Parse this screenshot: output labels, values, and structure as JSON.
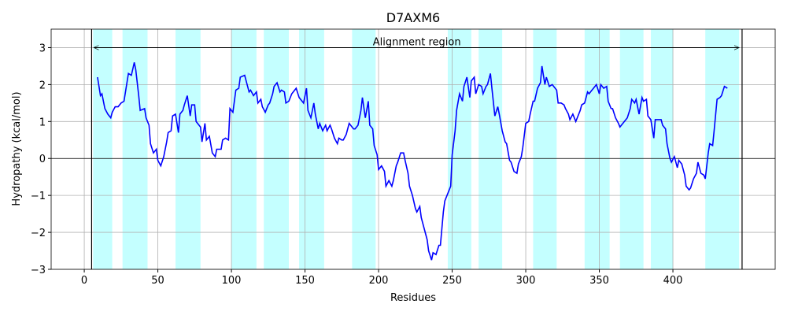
{
  "chart_data": {
    "type": "line",
    "title": "D7AXM6",
    "xlabel": "Residues",
    "ylabel": "Hydropathy (kcal/mol)",
    "color": "#0000ff",
    "grid": true,
    "xlim": [
      -22.5,
      469.5
    ],
    "ylim": [
      -3,
      3.5
    ],
    "xticks": [
      0,
      50,
      100,
      150,
      200,
      250,
      300,
      350,
      400
    ],
    "yticks": [
      -3,
      -2,
      -1,
      0,
      1,
      2,
      3
    ],
    "hline": 0,
    "vlines": [
      5,
      447
    ],
    "span_color": "#c4ffff",
    "spans": [
      [
        6,
        19
      ],
      [
        26,
        43
      ],
      [
        62,
        79
      ],
      [
        100,
        117
      ],
      [
        122,
        139
      ],
      [
        146,
        163
      ],
      [
        182,
        198
      ],
      [
        247,
        263
      ],
      [
        268,
        284
      ],
      [
        305,
        321
      ],
      [
        340,
        357
      ],
      [
        364,
        380
      ],
      [
        385,
        400
      ],
      [
        422,
        445
      ]
    ],
    "annotation": {
      "text": "Alignment region",
      "x": 226,
      "y": 3.15,
      "arrow_from": 6.5,
      "arrow_to": 445,
      "arrow_y": 3
    },
    "x": [
      9,
      11,
      12,
      14,
      16,
      18,
      19,
      21,
      23,
      25,
      27,
      28,
      30,
      32,
      34,
      35,
      37,
      38,
      41,
      42,
      44,
      45,
      47,
      49,
      50,
      52,
      54,
      56,
      57,
      59,
      60,
      62,
      64,
      65,
      67,
      68,
      70,
      72,
      73,
      75,
      76,
      79,
      80,
      82,
      83,
      85,
      87,
      89,
      90,
      93,
      94,
      96,
      98,
      99,
      101,
      103,
      105,
      106,
      109,
      110,
      112,
      113,
      115,
      117,
      118,
      120,
      121,
      123,
      125,
      126,
      128,
      129,
      131,
      133,
      134,
      136,
      137,
      139,
      141,
      142,
      144,
      146,
      148,
      149,
      151,
      152,
      154,
      156,
      157,
      159,
      160,
      162,
      164,
      165,
      167,
      168,
      170,
      172,
      173,
      175,
      176,
      178,
      180,
      181,
      183,
      184,
      186,
      188,
      189,
      191,
      193,
      194,
      196,
      197,
      199,
      200,
      202,
      204,
      205,
      207,
      209,
      210,
      212,
      213,
      215,
      217,
      218,
      220,
      221,
      223,
      225,
      226,
      228,
      229,
      231,
      233,
      234,
      236,
      237,
      239,
      241,
      242,
      244,
      245,
      247,
      249,
      250,
      252,
      253,
      255,
      257,
      258,
      260,
      262,
      263,
      265,
      266,
      268,
      270,
      271,
      273,
      274,
      276,
      277,
      279,
      281,
      282,
      284,
      286,
      287,
      289,
      290,
      292,
      294,
      295,
      297,
      298,
      300,
      302,
      303,
      305,
      306,
      308,
      310,
      311,
      313,
      314,
      316,
      318,
      319,
      321,
      322,
      324,
      326,
      327,
      329,
      330,
      332,
      334,
      335,
      337,
      338,
      340,
      342,
      343,
      345,
      346,
      348,
      350,
      351,
      353,
      355,
      356,
      358,
      359,
      361,
      363,
      364,
      366,
      368,
      369,
      371,
      372,
      374,
      375,
      377,
      379,
      380,
      382,
      383,
      385,
      387,
      388,
      390,
      392,
      393,
      395,
      396,
      398,
      399,
      401,
      403,
      404,
      406,
      408,
      409,
      411,
      412,
      414,
      416,
      417,
      419,
      421,
      422,
      424,
      425,
      427,
      428,
      430,
      432,
      433,
      435,
      437
    ],
    "values": [
      2.2,
      1.7,
      1.75,
      1.35,
      1.2,
      1.1,
      1.25,
      1.4,
      1.4,
      1.5,
      1.55,
      1.8,
      2.3,
      2.25,
      2.6,
      2.4,
      1.7,
      1.3,
      1.35,
      1.1,
      0.9,
      0.4,
      0.15,
      0.25,
      -0.05,
      -0.2,
      0.05,
      0.45,
      0.7,
      0.75,
      1.15,
      1.2,
      0.7,
      1.2,
      1.3,
      1.45,
      1.7,
      1.15,
      1.45,
      1.45,
      1.0,
      0.85,
      0.45,
      0.95,
      0.5,
      0.6,
      0.15,
      0.05,
      0.25,
      0.25,
      0.5,
      0.55,
      0.5,
      1.35,
      1.25,
      1.85,
      1.9,
      2.2,
      2.25,
      2.1,
      1.8,
      1.85,
      1.7,
      1.8,
      1.5,
      1.6,
      1.4,
      1.25,
      1.45,
      1.5,
      1.75,
      1.95,
      2.05,
      1.8,
      1.85,
      1.8,
      1.5,
      1.55,
      1.75,
      1.8,
      1.9,
      1.65,
      1.55,
      1.5,
      1.9,
      1.3,
      1.1,
      1.5,
      1.2,
      0.8,
      0.95,
      0.75,
      0.9,
      0.75,
      0.9,
      0.8,
      0.55,
      0.4,
      0.55,
      0.5,
      0.5,
      0.65,
      0.95,
      0.9,
      0.8,
      0.8,
      0.9,
      1.3,
      1.65,
      1.1,
      1.55,
      0.9,
      0.8,
      0.35,
      0.1,
      -0.3,
      -0.2,
      -0.35,
      -0.75,
      -0.6,
      -0.75,
      -0.6,
      -0.2,
      -0.1,
      0.15,
      0.15,
      -0.05,
      -0.4,
      -0.75,
      -1.0,
      -1.35,
      -1.45,
      -1.3,
      -1.6,
      -1.9,
      -2.2,
      -2.5,
      -2.75,
      -2.55,
      -2.6,
      -2.35,
      -2.35,
      -1.45,
      -1.15,
      -0.95,
      -0.75,
      0.1,
      0.75,
      1.3,
      1.75,
      1.55,
      1.95,
      2.2,
      1.65,
      2.1,
      2.2,
      1.75,
      2.0,
      1.95,
      1.75,
      1.95,
      2.0,
      2.3,
      1.9,
      1.15,
      1.4,
      1.2,
      0.75,
      0.45,
      0.4,
      -0.05,
      -0.1,
      -0.35,
      -0.4,
      -0.15,
      0.05,
      0.3,
      0.95,
      1.0,
      1.2,
      1.55,
      1.55,
      1.9,
      2.05,
      2.5,
      2.0,
      2.2,
      1.95,
      2.0,
      1.95,
      1.85,
      1.5,
      1.5,
      1.45,
      1.35,
      1.2,
      1.05,
      1.2,
      1.0,
      1.1,
      1.3,
      1.45,
      1.5,
      1.8,
      1.75,
      1.85,
      1.9,
      2.0,
      1.75,
      2.0,
      1.9,
      1.95,
      1.55,
      1.35,
      1.35,
      1.1,
      0.95,
      0.85,
      0.95,
      1.05,
      1.1,
      1.35,
      1.6,
      1.5,
      1.6,
      1.2,
      1.65,
      1.55,
      1.6,
      1.15,
      1.05,
      0.55,
      1.05,
      1.05,
      1.05,
      0.9,
      0.8,
      0.4,
      0.0,
      -0.1,
      0.05,
      -0.25,
      -0.05,
      -0.15,
      -0.45,
      -0.75,
      -0.85,
      -0.8,
      -0.55,
      -0.4,
      -0.1,
      -0.4,
      -0.45,
      -0.55,
      0.15,
      0.4,
      0.35,
      0.75,
      1.6,
      1.65,
      1.7,
      1.95,
      1.9
    ]
  }
}
